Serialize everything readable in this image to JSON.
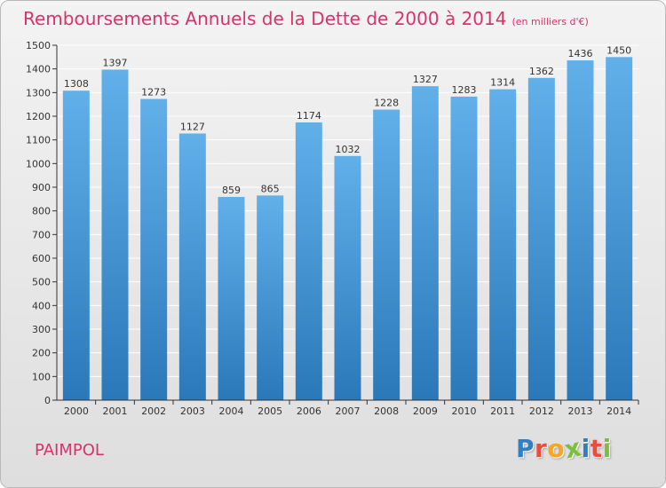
{
  "header": {
    "title": "Remboursements Annuels de la Dette de 2000 à 2014",
    "subtitle": "(en milliers d'€)"
  },
  "footer": {
    "city": "PAIMPOL",
    "logo_letters": [
      {
        "char": "P",
        "color": "#2f7fc4"
      },
      {
        "char": "r",
        "color": "#e94e3c"
      },
      {
        "char": "o",
        "color": "#f5a623"
      },
      {
        "char": "x",
        "color": "#7cbf3a"
      },
      {
        "char": "i",
        "color": "#2f7fc4"
      },
      {
        "char": "t",
        "color": "#e94e3c"
      },
      {
        "char": "i",
        "color": "#7cbf3a"
      }
    ]
  },
  "colors": {
    "title": "#d6336c",
    "bar_top": "#62b0ea",
    "bar_bottom": "#2a78b8",
    "grid": "#ffffff",
    "axis": "#333333"
  },
  "chart_data": {
    "type": "bar",
    "title": "Remboursements Annuels de la Dette de 2000 à 2014",
    "subtitle": "(en milliers d'€)",
    "xlabel": "",
    "ylabel": "",
    "categories": [
      "2000",
      "2001",
      "2002",
      "2003",
      "2004",
      "2005",
      "2006",
      "2007",
      "2008",
      "2009",
      "2010",
      "2011",
      "2012",
      "2013",
      "2014"
    ],
    "values": [
      1308,
      1397,
      1273,
      1127,
      859,
      865,
      1174,
      1032,
      1228,
      1327,
      1283,
      1314,
      1362,
      1436,
      1450
    ],
    "ylim": [
      0,
      1500
    ],
    "yticks": [
      0,
      100,
      200,
      300,
      400,
      500,
      600,
      700,
      800,
      900,
      1000,
      1100,
      1200,
      1300,
      1400,
      1500
    ],
    "grid": true,
    "data_labels": true
  }
}
